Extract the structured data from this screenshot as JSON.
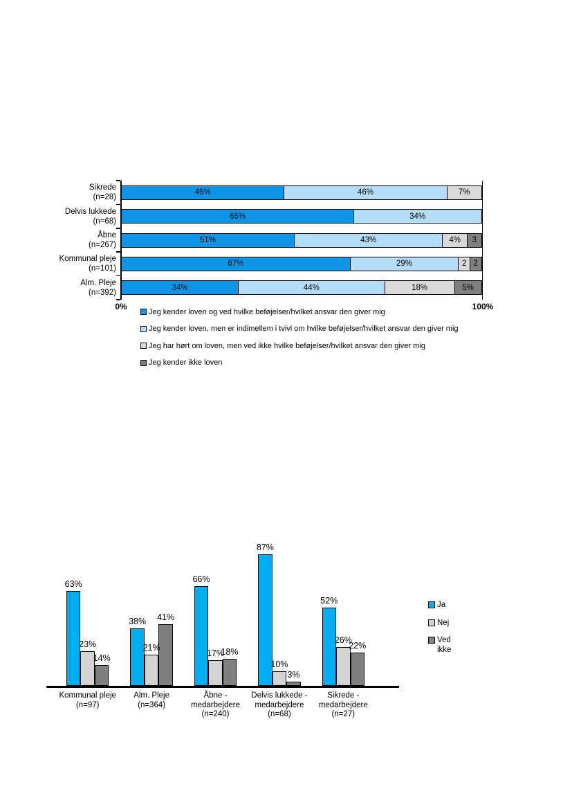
{
  "page": {
    "background": "#ffffff"
  },
  "chart_data": [
    {
      "type": "bar",
      "variant": "horizontal-stacked",
      "title": "",
      "xlabel": "",
      "ylabel": "",
      "xlim": [
        0,
        100
      ],
      "axis_labels": {
        "min": "0%",
        "max": "100%"
      },
      "legend_position": "bottom",
      "grid": false,
      "categories": [
        {
          "lines": [
            "Sikrede",
            "(n=28)"
          ]
        },
        {
          "lines": [
            "Delvis lukkede",
            "(n=68)"
          ]
        },
        {
          "lines": [
            "Åbne",
            "(n=267)"
          ]
        },
        {
          "lines": [
            "Kommunal pleje",
            "(n=101)"
          ]
        },
        {
          "lines": [
            "Alm. Pleje",
            "(n=392)"
          ]
        }
      ],
      "series": [
        {
          "name": "Jeg kender loven og ved hvilke beføjelser/hvilket ansvar den giver mig",
          "color": "#0d96e8",
          "values": [
            46,
            66,
            51,
            67,
            34
          ],
          "labels": [
            "46%",
            "66%",
            "51%",
            "67%",
            "34%"
          ]
        },
        {
          "name": "Jeg kender loven, men er indimellem i tvivl om hvilke beføjelser/hvilket ansvar den giver mig",
          "color": "#b3dcf8",
          "values": [
            46,
            34,
            43,
            29,
            44
          ],
          "labels": [
            "46%",
            "34%",
            "43%",
            "29%",
            "44%"
          ]
        },
        {
          "name": "Jeg har hørt om loven, men ved ikke hvilke beføjelser/hvilket ansvar den giver mig",
          "color": "#d9d9d9",
          "values": [
            7,
            0,
            4,
            2,
            18
          ],
          "labels": [
            "7%",
            "",
            "4%",
            "2",
            "18%"
          ]
        },
        {
          "name": "Jeg kender ikke loven",
          "color": "#808080",
          "values": [
            0,
            0,
            3,
            2,
            5
          ],
          "labels": [
            "",
            "",
            "3",
            "2",
            "5%"
          ]
        }
      ]
    },
    {
      "type": "bar",
      "variant": "vertical-grouped",
      "title": "",
      "xlabel": "",
      "ylabel": "",
      "ylim": [
        0,
        100
      ],
      "legend_position": "right",
      "grid": false,
      "categories": [
        {
          "lines": [
            "Kommunal pleje",
            "(n=97)"
          ]
        },
        {
          "lines": [
            "Alm. Pleje",
            "(n=364)"
          ]
        },
        {
          "lines": [
            "Åbne -",
            "medarbejdere",
            "(n=240)"
          ]
        },
        {
          "lines": [
            "Delvis lukkede -",
            "medarbejdere",
            "(n=68)"
          ]
        },
        {
          "lines": [
            "Sikrede -",
            "medarbejdere",
            "(n=27)"
          ]
        }
      ],
      "series": [
        {
          "name": "Ja",
          "color": "#00aeef",
          "values": [
            63,
            38,
            66,
            87,
            52
          ],
          "labels": [
            "63%",
            "38%",
            "66%",
            "87%",
            "52%"
          ]
        },
        {
          "name": "Nej",
          "color": "#d3d3d3",
          "values": [
            23,
            21,
            17,
            10,
            26
          ],
          "labels": [
            "23%",
            "21%",
            "17%",
            "10%",
            "26%"
          ]
        },
        {
          "name": "Ved ikke",
          "color": "#7f7f7f",
          "values": [
            14,
            41,
            18,
            3,
            22
          ],
          "labels": [
            "14%",
            "41%",
            "18%",
            "3%",
            "22%"
          ]
        }
      ]
    }
  ]
}
